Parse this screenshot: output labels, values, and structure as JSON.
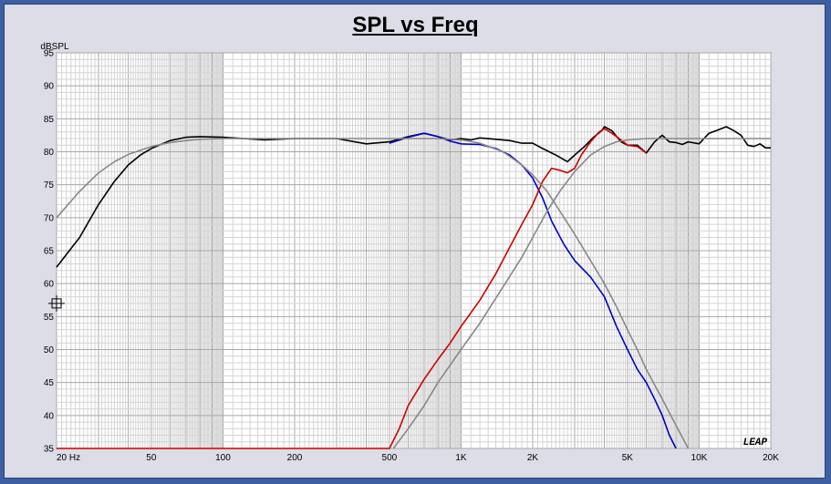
{
  "chart_data": {
    "type": "line",
    "title": "SPL vs Freq",
    "xlabel": "",
    "ylabel": "dBSPL",
    "x_scale": "log",
    "xlim": [
      20,
      20000
    ],
    "ylim": [
      35,
      95
    ],
    "grid": true,
    "x_ticks": [
      {
        "value": 20,
        "label": "20  Hz"
      },
      {
        "value": 50,
        "label": "50"
      },
      {
        "value": 100,
        "label": "100"
      },
      {
        "value": 200,
        "label": "200"
      },
      {
        "value": 500,
        "label": "500"
      },
      {
        "value": 1000,
        "label": "1K"
      },
      {
        "value": 2000,
        "label": "2K"
      },
      {
        "value": 5000,
        "label": "5K"
      },
      {
        "value": 10000,
        "label": "10K"
      },
      {
        "value": 20000,
        "label": "20K"
      }
    ],
    "y_ticks": [
      35,
      40,
      45,
      50,
      55,
      60,
      65,
      70,
      75,
      80,
      85,
      90,
      95
    ],
    "watermark": "LEAP",
    "series": [
      {
        "color": "#000000",
        "points": [
          [
            20,
            62.5
          ],
          [
            25,
            67
          ],
          [
            30,
            72
          ],
          [
            35,
            75.5
          ],
          [
            40,
            78
          ],
          [
            45,
            79.5
          ],
          [
            50,
            80.5
          ],
          [
            60,
            81.7
          ],
          [
            70,
            82.2
          ],
          [
            80,
            82.3
          ],
          [
            100,
            82.2
          ],
          [
            150,
            81.8
          ],
          [
            200,
            82
          ],
          [
            250,
            82
          ],
          [
            300,
            82
          ],
          [
            400,
            81.2
          ],
          [
            500,
            81.5
          ],
          [
            600,
            82.3
          ],
          [
            700,
            82.8
          ],
          [
            800,
            82.3
          ],
          [
            900,
            81.8
          ],
          [
            1000,
            82
          ],
          [
            1100,
            81.8
          ],
          [
            1200,
            82.1
          ],
          [
            1400,
            81.9
          ],
          [
            1600,
            81.7
          ],
          [
            1800,
            81.3
          ],
          [
            2000,
            81.3
          ],
          [
            2200,
            80.5
          ],
          [
            2500,
            79.5
          ],
          [
            2800,
            78.5
          ],
          [
            3000,
            79.5
          ],
          [
            3300,
            80.8
          ],
          [
            3600,
            82.2
          ],
          [
            3900,
            83.2
          ],
          [
            4000,
            83.8
          ],
          [
            4300,
            83.2
          ],
          [
            4700,
            81.5
          ],
          [
            5000,
            81
          ],
          [
            5500,
            81
          ],
          [
            6000,
            79.8
          ],
          [
            6500,
            81.5
          ],
          [
            7000,
            82.5
          ],
          [
            7500,
            81.5
          ],
          [
            8000,
            81.4
          ],
          [
            8500,
            81.1
          ],
          [
            9000,
            81.5
          ],
          [
            10000,
            81.2
          ],
          [
            11000,
            82.8
          ],
          [
            12000,
            83.3
          ],
          [
            13000,
            83.8
          ],
          [
            14000,
            83.2
          ],
          [
            15000,
            82.5
          ],
          [
            16000,
            81
          ],
          [
            17000,
            80.8
          ],
          [
            18000,
            81.2
          ],
          [
            19000,
            80.6
          ],
          [
            20000,
            80.6
          ]
        ]
      },
      {
        "color": "#0000cc",
        "points": [
          [
            500,
            81.3
          ],
          [
            600,
            82.2
          ],
          [
            700,
            82.8
          ],
          [
            800,
            82.3
          ],
          [
            900,
            81.6
          ],
          [
            1000,
            81.2
          ],
          [
            1200,
            81.1
          ],
          [
            1400,
            80.5
          ],
          [
            1600,
            79.5
          ],
          [
            1800,
            78
          ],
          [
            2000,
            76
          ],
          [
            2200,
            73
          ],
          [
            2400,
            69.5
          ],
          [
            2700,
            66
          ],
          [
            3000,
            63.5
          ],
          [
            3500,
            61
          ],
          [
            4000,
            58
          ],
          [
            4500,
            53.5
          ],
          [
            5000,
            50
          ],
          [
            5500,
            47
          ],
          [
            6000,
            45
          ],
          [
            6500,
            42.5
          ],
          [
            7000,
            40
          ],
          [
            7500,
            37
          ],
          [
            8000,
            35
          ]
        ]
      },
      {
        "color": "#cc0000",
        "points": [
          [
            20,
            35
          ],
          [
            500,
            35
          ],
          [
            550,
            38
          ],
          [
            600,
            41.5
          ],
          [
            700,
            45.5
          ],
          [
            800,
            48.5
          ],
          [
            900,
            51
          ],
          [
            1000,
            53.5
          ],
          [
            1200,
            57.5
          ],
          [
            1400,
            61.5
          ],
          [
            1600,
            65.5
          ],
          [
            1800,
            69
          ],
          [
            2000,
            72
          ],
          [
            2200,
            75.5
          ],
          [
            2400,
            77.5
          ],
          [
            2600,
            77.2
          ],
          [
            2800,
            76.8
          ],
          [
            3000,
            77.5
          ],
          [
            3200,
            79.5
          ],
          [
            3500,
            81.5
          ],
          [
            3800,
            83
          ],
          [
            4000,
            83.5
          ],
          [
            4300,
            82.8
          ],
          [
            4700,
            81.8
          ],
          [
            5000,
            81
          ],
          [
            5500,
            80.8
          ],
          [
            6000,
            79.8
          ]
        ]
      },
      {
        "color": "#888888",
        "points": [
          [
            20,
            70
          ],
          [
            25,
            74
          ],
          [
            30,
            76.8
          ],
          [
            35,
            78.5
          ],
          [
            40,
            79.6
          ],
          [
            50,
            80.8
          ],
          [
            60,
            81.4
          ],
          [
            70,
            81.7
          ],
          [
            80,
            81.9
          ],
          [
            100,
            82
          ],
          [
            300,
            82
          ],
          [
            500,
            82
          ],
          [
            800,
            82
          ],
          [
            1000,
            81.8
          ],
          [
            1200,
            81.3
          ],
          [
            1500,
            80
          ],
          [
            1800,
            78
          ],
          [
            2000,
            76.5
          ],
          [
            2300,
            74
          ],
          [
            2600,
            71
          ],
          [
            3000,
            67.5
          ],
          [
            3500,
            63.5
          ],
          [
            4000,
            60
          ],
          [
            4500,
            56.5
          ],
          [
            5000,
            53
          ],
          [
            5500,
            50
          ],
          [
            6000,
            47
          ],
          [
            7000,
            42.5
          ],
          [
            8000,
            38.5
          ],
          [
            9000,
            35
          ]
        ]
      },
      {
        "color": "#888888",
        "points": [
          [
            520,
            35
          ],
          [
            600,
            38
          ],
          [
            700,
            41.5
          ],
          [
            800,
            45
          ],
          [
            1000,
            50
          ],
          [
            1200,
            54
          ],
          [
            1500,
            59.5
          ],
          [
            1800,
            64
          ],
          [
            2000,
            67
          ],
          [
            2300,
            71
          ],
          [
            2600,
            74
          ],
          [
            3000,
            77
          ],
          [
            3500,
            79.5
          ],
          [
            4000,
            80.8
          ],
          [
            4500,
            81.5
          ],
          [
            5000,
            81.8
          ],
          [
            6000,
            82
          ],
          [
            10000,
            82
          ],
          [
            20000,
            82
          ]
        ]
      }
    ]
  }
}
